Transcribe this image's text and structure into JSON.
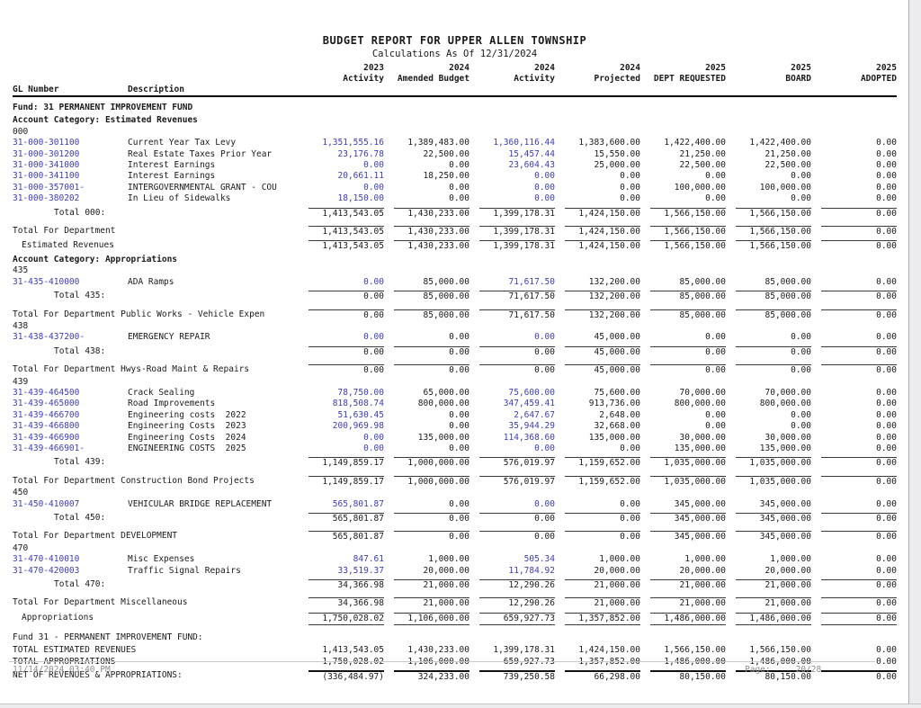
{
  "title": "BUDGET REPORT FOR UPPER ALLEN TOWNSHIP",
  "subtitle": "Calculations As Of 12/31/2024",
  "table": {
    "gl_header": "GL Number",
    "desc_header": "Description",
    "columns": [
      {
        "year": "2023",
        "label": "Activity"
      },
      {
        "year": "2024",
        "label": "Amended Budget"
      },
      {
        "year": "2024",
        "label": "Activity"
      },
      {
        "year": "2024",
        "label": "Projected"
      },
      {
        "year": "2025",
        "label": "DEPT REQUESTED"
      },
      {
        "year": "2025",
        "label": "BOARD"
      },
      {
        "year": "2025",
        "label": "ADOPTED"
      }
    ],
    "rows": [
      {
        "type": "fund",
        "text": "Fund: 31 PERMANENT IMPROVEMENT FUND"
      },
      {
        "type": "category",
        "text": "Account Category: Estimated Revenues"
      },
      {
        "type": "code",
        "text": "000"
      },
      {
        "type": "detail",
        "gl": "31-000-301100",
        "desc": "Current Year Tax Levy",
        "v": [
          "1,351,555.16",
          "1,389,483.00",
          "1,360,116.44",
          "1,383,600.00",
          "1,422,400.00",
          "1,422,400.00",
          "0.00"
        ]
      },
      {
        "type": "detail",
        "gl": "31-000-301200",
        "desc": "Real Estate Taxes Prior Year",
        "v": [
          "23,176.78",
          "22,500.00",
          "15,457.44",
          "15,550.00",
          "21,250.00",
          "21,250.00",
          "0.00"
        ]
      },
      {
        "type": "detail",
        "gl": "31-000-341000",
        "desc": "Interest Earnings",
        "v": [
          "0.00",
          "0.00",
          "23,604.43",
          "25,000.00",
          "22,500.00",
          "22,500.00",
          "0.00"
        ]
      },
      {
        "type": "detail",
        "gl": "31-000-341100",
        "desc": "Interest Earnings",
        "v": [
          "20,661.11",
          "18,250.00",
          "0.00",
          "0.00",
          "0.00",
          "0.00",
          "0.00"
        ]
      },
      {
        "type": "detail",
        "gl": "31-000-357001-",
        "desc": "INTERGOVERNMENTAL GRANT - COU",
        "v": [
          "0.00",
          "0.00",
          "0.00",
          "0.00",
          "100,000.00",
          "100,000.00",
          "0.00"
        ]
      },
      {
        "type": "detail",
        "gl": "31-000-380202",
        "desc": "In Lieu of Sidewalks",
        "v": [
          "18,150.00",
          "0.00",
          "0.00",
          "0.00",
          "0.00",
          "0.00",
          "0.00"
        ]
      },
      {
        "type": "total",
        "label": "Total 000:",
        "v": [
          "1,413,543.05",
          "1,430,233.00",
          "1,399,178.31",
          "1,424,150.00",
          "1,566,150.00",
          "1,566,150.00",
          "0.00"
        ]
      },
      {
        "type": "dept_total",
        "label": "Total For Department",
        "v": [
          "1,413,543.05",
          "1,430,233.00",
          "1,399,178.31",
          "1,424,150.00",
          "1,566,150.00",
          "1,566,150.00",
          "0.00"
        ]
      },
      {
        "type": "cat_total",
        "label": "Estimated Revenues",
        "v": [
          "1,413,543.05",
          "1,430,233.00",
          "1,399,178.31",
          "1,424,150.00",
          "1,566,150.00",
          "1,566,150.00",
          "0.00"
        ]
      },
      {
        "type": "category",
        "text": "Account Category: Appropriations"
      },
      {
        "type": "code",
        "text": "435"
      },
      {
        "type": "detail",
        "gl": "31-435-410000",
        "desc": "ADA Ramps",
        "v": [
          "0.00",
          "85,000.00",
          "71,617.50",
          "132,200.00",
          "85,000.00",
          "85,000.00",
          "0.00"
        ]
      },
      {
        "type": "total",
        "label": "Total 435:",
        "v": [
          "0.00",
          "85,000.00",
          "71,617.50",
          "132,200.00",
          "85,000.00",
          "85,000.00",
          "0.00"
        ]
      },
      {
        "type": "dept_total",
        "label": "Total For Department Public Works - Vehicle Expen",
        "v": [
          "0.00",
          "85,000.00",
          "71,617.50",
          "132,200.00",
          "85,000.00",
          "85,000.00",
          "0.00"
        ]
      },
      {
        "type": "code",
        "text": "438"
      },
      {
        "type": "detail",
        "gl": "31-438-437200-",
        "desc": "EMERGENCY REPAIR",
        "v": [
          "0.00",
          "0.00",
          "0.00",
          "45,000.00",
          "0.00",
          "0.00",
          "0.00"
        ]
      },
      {
        "type": "total",
        "label": "Total 438:",
        "v": [
          "0.00",
          "0.00",
          "0.00",
          "45,000.00",
          "0.00",
          "0.00",
          "0.00"
        ]
      },
      {
        "type": "dept_total",
        "label": "Total For Department Hwys-Road Maint & Repairs",
        "v": [
          "0.00",
          "0.00",
          "0.00",
          "45,000.00",
          "0.00",
          "0.00",
          "0.00"
        ]
      },
      {
        "type": "code",
        "text": "439"
      },
      {
        "type": "detail",
        "gl": "31-439-464500",
        "desc": "Crack Sealing",
        "v": [
          "78,750.00",
          "65,000.00",
          "75,600.00",
          "75,600.00",
          "70,000.00",
          "70,000.00",
          "0.00"
        ]
      },
      {
        "type": "detail",
        "gl": "31-439-465000",
        "desc": "Road Improvements",
        "v": [
          "818,508.74",
          "800,000.00",
          "347,459.41",
          "913,736.00",
          "800,000.00",
          "800,000.00",
          "0.00"
        ]
      },
      {
        "type": "detail",
        "gl": "31-439-466700",
        "desc": "Engineering costs  2022",
        "v": [
          "51,630.45",
          "0.00",
          "2,647.67",
          "2,648.00",
          "0.00",
          "0.00",
          "0.00"
        ]
      },
      {
        "type": "detail",
        "gl": "31-439-466800",
        "desc": "Engineering Costs  2023",
        "v": [
          "200,969.98",
          "0.00",
          "35,944.29",
          "32,668.00",
          "0.00",
          "0.00",
          "0.00"
        ]
      },
      {
        "type": "detail",
        "gl": "31-439-466900",
        "desc": "Engineering Costs  2024",
        "v": [
          "0.00",
          "135,000.00",
          "114,368.60",
          "135,000.00",
          "30,000.00",
          "30,000.00",
          "0.00"
        ]
      },
      {
        "type": "detail",
        "gl": "31-439-466901-",
        "desc": "ENGINEERING COSTS  2025",
        "v": [
          "0.00",
          "0.00",
          "0.00",
          "0.00",
          "135,000.00",
          "135,000.00",
          "0.00"
        ]
      },
      {
        "type": "total",
        "label": "Total 439:",
        "v": [
          "1,149,859.17",
          "1,000,000.00",
          "576,019.97",
          "1,159,652.00",
          "1,035,000.00",
          "1,035,000.00",
          "0.00"
        ]
      },
      {
        "type": "dept_total",
        "label": "Total For Department Construction Bond Projects",
        "v": [
          "1,149,859.17",
          "1,000,000.00",
          "576,019.97",
          "1,159,652.00",
          "1,035,000.00",
          "1,035,000.00",
          "0.00"
        ]
      },
      {
        "type": "code",
        "text": "450"
      },
      {
        "type": "detail",
        "gl": "31-450-410007",
        "desc": "VEHICULAR BRIDGE REPLACEMENT",
        "v": [
          "565,801.87",
          "0.00",
          "0.00",
          "0.00",
          "345,000.00",
          "345,000.00",
          "0.00"
        ]
      },
      {
        "type": "total",
        "label": "Total 450:",
        "v": [
          "565,801.87",
          "0.00",
          "0.00",
          "0.00",
          "345,000.00",
          "345,000.00",
          "0.00"
        ]
      },
      {
        "type": "dept_total",
        "label": "Total For Department DEVELOPMENT",
        "v": [
          "565,801.87",
          "0.00",
          "0.00",
          "0.00",
          "345,000.00",
          "345,000.00",
          "0.00"
        ]
      },
      {
        "type": "code",
        "text": "470"
      },
      {
        "type": "detail",
        "gl": "31-470-410010",
        "desc": "Misc Expenses",
        "v": [
          "847.61",
          "1,000.00",
          "505.34",
          "1,000.00",
          "1,000.00",
          "1,000.00",
          "0.00"
        ]
      },
      {
        "type": "detail",
        "gl": "31-470-420003",
        "desc": "Traffic Signal Repairs",
        "v": [
          "33,519.37",
          "20,000.00",
          "11,784.92",
          "20,000.00",
          "20,000.00",
          "20,000.00",
          "0.00"
        ]
      },
      {
        "type": "total",
        "label": "Total 470:",
        "v": [
          "34,366.98",
          "21,000.00",
          "12,290.26",
          "21,000.00",
          "21,000.00",
          "21,000.00",
          "0.00"
        ]
      },
      {
        "type": "dept_total",
        "label": "Total For Department Miscellaneous",
        "v": [
          "34,366.98",
          "21,000.00",
          "12,290.26",
          "21,000.00",
          "21,000.00",
          "21,000.00",
          "0.00"
        ]
      },
      {
        "type": "cat_total",
        "label": "Appropriations",
        "underline": true,
        "v": [
          "1,750,028.02",
          "1,106,000.00",
          "659,927.73",
          "1,357,852.00",
          "1,486,000.00",
          "1,486,000.00",
          "0.00"
        ]
      },
      {
        "type": "fund_label",
        "text": "Fund 31 - PERMANENT IMPROVEMENT FUND:"
      },
      {
        "type": "grand",
        "label": "TOTAL ESTIMATED REVENUES",
        "v": [
          "1,413,543.05",
          "1,430,233.00",
          "1,399,178.31",
          "1,424,150.00",
          "1,566,150.00",
          "1,566,150.00",
          "0.00"
        ]
      },
      {
        "type": "grand",
        "label": "TOTAL APPROPRIATIONS",
        "v": [
          "1,750,028.02",
          "1,106,000.00",
          "659,927.73",
          "1,357,852.00",
          "1,486,000.00",
          "1,486,000.00",
          "0.00"
        ]
      },
      {
        "type": "net",
        "label": "NET OF REVENUES & APPROPRIATIONS:",
        "v": [
          "(336,484.97)",
          "324,233.00",
          "739,250.58",
          "66,298.00",
          "80,150.00",
          "80,150.00",
          "0.00"
        ]
      }
    ]
  },
  "footer": {
    "datetime": "11/14/2024 03:40 PM",
    "page_label": "Page:",
    "page_value": "20/28"
  },
  "colors": {
    "gl_blue": "#3c3cb8",
    "text": "#1a1a1a",
    "muted": "#8e8e8e"
  }
}
